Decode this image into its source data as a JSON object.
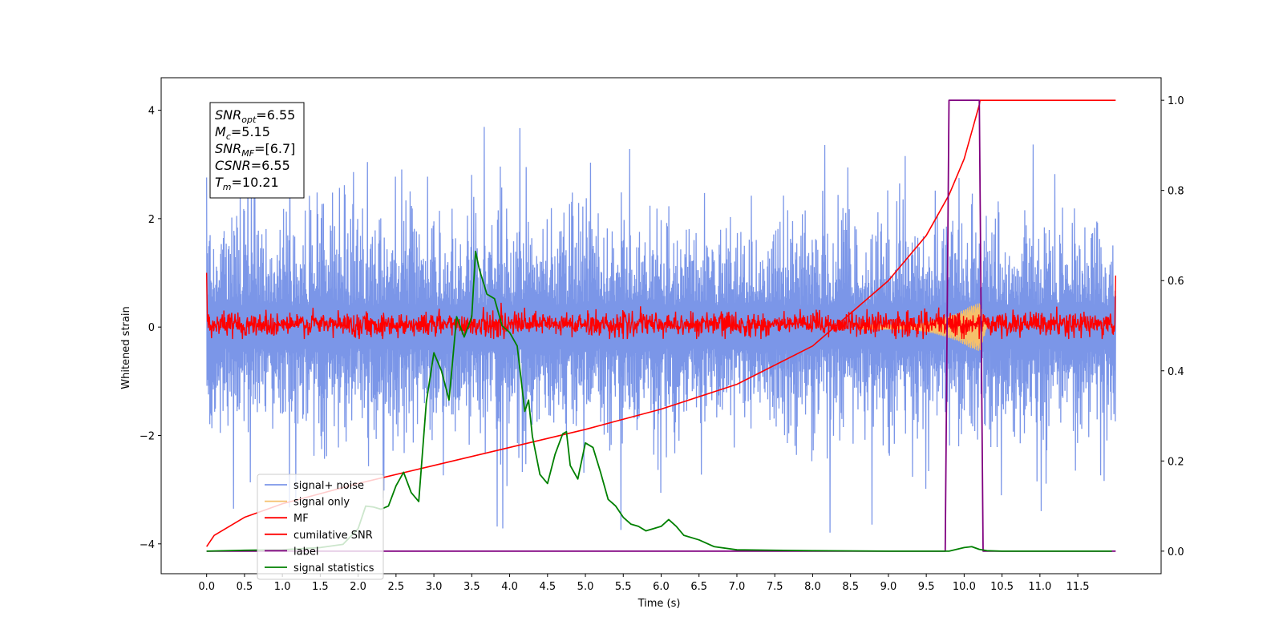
{
  "chart_data": {
    "type": "line",
    "xlabel": "Time (s)",
    "ylabel": "Whitened strain",
    "xlim": [
      -0.6,
      12.6
    ],
    "ylim": [
      -4.55,
      4.6
    ],
    "ylim_right": [
      -0.05,
      1.05
    ],
    "x_ticks": [
      "0.0",
      "0.5",
      "1.0",
      "1.5",
      "2.0",
      "2.5",
      "3.0",
      "3.5",
      "4.0",
      "4.5",
      "5.0",
      "5.5",
      "6.0",
      "6.5",
      "7.0",
      "7.5",
      "8.0",
      "8.5",
      "9.0",
      "9.5",
      "10.0",
      "10.5",
      "11.0",
      "11.5"
    ],
    "y_ticks_left": [
      "4",
      "2",
      "0",
      "−2",
      "−4"
    ],
    "y_tick_values_left": [
      4,
      2,
      0,
      -2,
      -4
    ],
    "y_ticks_right": [
      "1.0",
      "0.8",
      "0.6",
      "0.4",
      "0.2",
      "0.0"
    ],
    "y_tick_values_right": [
      1.0,
      0.8,
      0.6,
      0.4,
      0.2,
      0.0
    ],
    "legend_position": "lower-left",
    "legend": [
      {
        "label": "signal+ noise",
        "color": "#7b96e8"
      },
      {
        "label": "signal only",
        "color": "#f5c06b"
      },
      {
        "label": "MF",
        "color": "#ff0000"
      },
      {
        "label": "cumilative SNR",
        "color": "#ff0000"
      },
      {
        "label": "label",
        "color": "#800080"
      },
      {
        "label": "signal statistics",
        "color": "#008000"
      }
    ],
    "annotation": {
      "lines": [
        {
          "base": "SNR",
          "sub": "opt",
          "value": "=6.55"
        },
        {
          "base": "M",
          "sub": "c",
          "value": "=5.15"
        },
        {
          "base": "SNR",
          "sub": "MF",
          "value": "=[6.7]"
        },
        {
          "base": "CSNR",
          "sub": "",
          "value": "=6.55"
        },
        {
          "base": "T",
          "sub": "m",
          "value": "=10.21"
        }
      ]
    },
    "series": [
      {
        "name": "signal+ noise",
        "axis": "left",
        "color": "#7b96e8",
        "description_x_range": [
          0.0,
          12.0
        ],
        "typical_range": [
          -2.0,
          2.1
        ],
        "extremes": [
          -3.9,
          4.15
        ]
      },
      {
        "name": "signal only",
        "axis": "left",
        "color": "#f5c06b",
        "x": [
          0.0,
          9.3,
          9.6,
          9.9,
          10.1,
          10.21,
          10.3,
          12.0
        ],
        "envelope": [
          0.0,
          0.05,
          0.12,
          0.25,
          0.4,
          0.45,
          0.0,
          0.0
        ]
      },
      {
        "name": "MF",
        "axis": "left",
        "color": "#ff0000",
        "x_range": [
          0.0,
          12.0
        ],
        "typical_range": [
          -0.2,
          0.3
        ],
        "start_value": 1.0,
        "end_value": 0.95
      },
      {
        "name": "cumilative SNR",
        "axis": "right",
        "color": "#ff0000",
        "x": [
          0.0,
          0.1,
          0.5,
          1.0,
          2.0,
          3.0,
          4.0,
          5.0,
          6.0,
          7.0,
          8.0,
          9.0,
          9.5,
          9.8,
          10.0,
          10.1,
          10.2,
          10.21,
          12.0
        ],
        "values": [
          0.01,
          0.035,
          0.075,
          0.105,
          0.15,
          0.19,
          0.23,
          0.27,
          0.315,
          0.37,
          0.455,
          0.6,
          0.7,
          0.79,
          0.87,
          0.93,
          0.99,
          1.0,
          1.0
        ]
      },
      {
        "name": "label",
        "axis": "right",
        "color": "#800080",
        "x": [
          0.0,
          9.75,
          9.8,
          10.2,
          10.25,
          12.0
        ],
        "values": [
          0.0,
          0.0,
          1.0,
          1.0,
          0.0,
          0.0
        ]
      },
      {
        "name": "signal statistics",
        "axis": "right",
        "color": "#008000",
        "x": [
          0.0,
          0.5,
          1.0,
          1.5,
          1.8,
          2.0,
          2.1,
          2.2,
          2.3,
          2.4,
          2.5,
          2.6,
          2.7,
          2.8,
          2.9,
          3.0,
          3.1,
          3.2,
          3.3,
          3.4,
          3.5,
          3.55,
          3.6,
          3.7,
          3.8,
          3.9,
          4.0,
          4.1,
          4.2,
          4.25,
          4.3,
          4.4,
          4.5,
          4.6,
          4.7,
          4.75,
          4.8,
          4.9,
          5.0,
          5.1,
          5.2,
          5.3,
          5.4,
          5.5,
          5.6,
          5.7,
          5.8,
          5.9,
          6.0,
          6.1,
          6.2,
          6.3,
          6.5,
          6.7,
          7.0,
          7.5,
          8.0,
          9.0,
          9.5,
          9.8,
          10.0,
          10.1,
          10.2,
          10.3,
          10.5,
          11.0,
          11.5,
          11.95
        ],
        "values": [
          0.0,
          0.002,
          0.003,
          0.008,
          0.015,
          0.05,
          0.1,
          0.098,
          0.093,
          0.1,
          0.145,
          0.175,
          0.13,
          0.11,
          0.33,
          0.44,
          0.4,
          0.335,
          0.52,
          0.475,
          0.52,
          0.665,
          0.625,
          0.57,
          0.56,
          0.5,
          0.485,
          0.455,
          0.31,
          0.335,
          0.255,
          0.17,
          0.15,
          0.215,
          0.26,
          0.265,
          0.19,
          0.16,
          0.24,
          0.23,
          0.175,
          0.115,
          0.1,
          0.075,
          0.06,
          0.055,
          0.045,
          0.05,
          0.055,
          0.07,
          0.055,
          0.035,
          0.025,
          0.01,
          0.003,
          0.002,
          0.001,
          0.0,
          0.0,
          0.0,
          0.008,
          0.01,
          0.004,
          0.001,
          0.0,
          0.0,
          0.0,
          0.0
        ]
      }
    ]
  }
}
